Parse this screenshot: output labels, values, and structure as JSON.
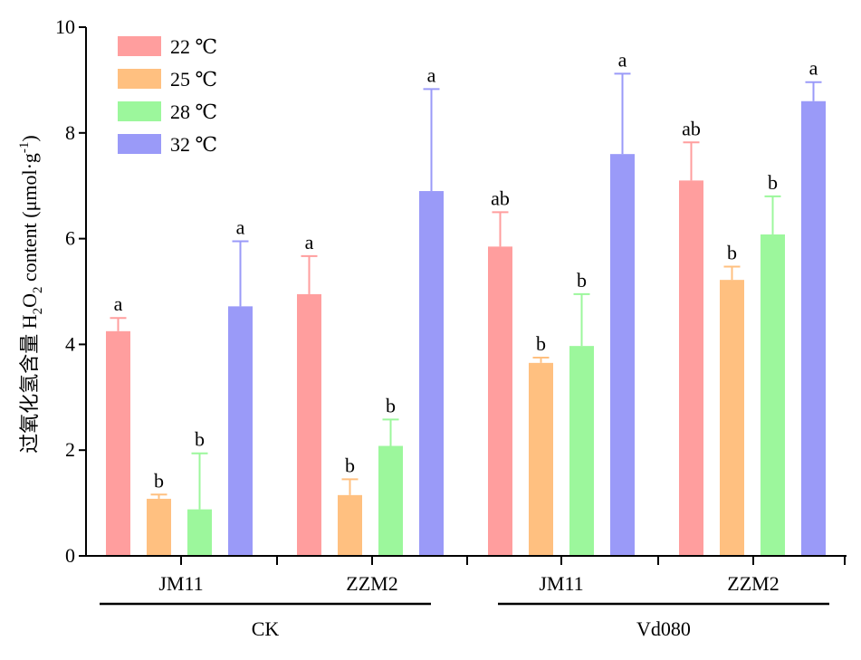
{
  "chart_data": {
    "type": "bar",
    "ylabel": {
      "prefix": "过氧化氢含量 H",
      "sub1": "2",
      "mid": "O",
      "sub2": "2",
      "suffix": " content (μmol·g",
      "sup": "-1",
      "end": ")"
    },
    "ylim": [
      0,
      10
    ],
    "yticks": [
      "0",
      "2",
      "4",
      "6",
      "8",
      "10"
    ],
    "ytick_values": [
      0,
      2,
      4,
      6,
      8,
      10
    ],
    "grid": false,
    "legend_position": "top-left",
    "groups": [
      {
        "label": "CK",
        "categories": [
          "JM11",
          "ZZM2"
        ]
      },
      {
        "label": "Vd080",
        "categories": [
          "JM11",
          "ZZM2"
        ]
      }
    ],
    "categories": [
      "JM11",
      "ZZM2",
      "JM11",
      "ZZM2"
    ],
    "series": [
      {
        "name": "22 ℃",
        "color": "#FF9E9E",
        "values": [
          4.25,
          4.95,
          5.85,
          7.1
        ],
        "errors": [
          0.25,
          0.72,
          0.65,
          0.72
        ],
        "labels": [
          "a",
          "a",
          "ab",
          "ab"
        ]
      },
      {
        "name": "25 ℃",
        "color": "#FFC080",
        "values": [
          1.08,
          1.15,
          3.65,
          5.22
        ],
        "errors": [
          0.08,
          0.3,
          0.1,
          0.25
        ],
        "labels": [
          "b",
          "b",
          "b",
          "b"
        ]
      },
      {
        "name": "28 ℃",
        "color": "#9CF79C",
        "values": [
          0.88,
          2.08,
          3.97,
          6.08
        ],
        "errors": [
          1.06,
          0.5,
          0.98,
          0.72
        ],
        "labels": [
          "b",
          "b",
          "b",
          "b"
        ]
      },
      {
        "name": "32 ℃",
        "color": "#9A9AF8",
        "values": [
          4.72,
          6.9,
          7.6,
          8.6
        ],
        "errors": [
          1.23,
          1.93,
          1.52,
          0.36
        ],
        "labels": [
          "a",
          "a",
          "a",
          "a"
        ]
      }
    ]
  }
}
